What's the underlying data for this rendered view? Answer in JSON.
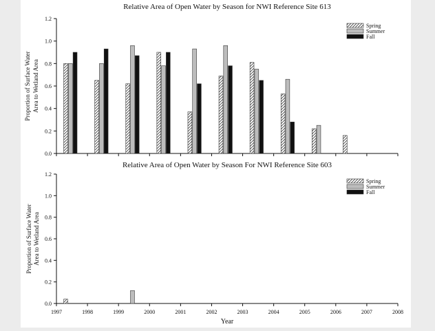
{
  "chart_data": [
    {
      "type": "bar",
      "title": "Relative Area of Open Water by Season for NWI Reference Site 613",
      "ylabel_lines": [
        "Proportion of Surface Water",
        "Area to Wetland Area"
      ],
      "xlabel": "",
      "ylim": [
        0,
        1.2
      ],
      "y_ticks": [
        "0.0",
        "0.2",
        "0.4",
        "0.6",
        "0.8",
        "1.0",
        "1.2"
      ],
      "x_range": [
        1997,
        2008
      ],
      "x_ticks": [],
      "grid": false,
      "legend_position": "top-right",
      "bar_width_years": 0.13,
      "series": [
        {
          "name": "Spring",
          "style": "hatch",
          "x": [
            1997.3,
            1998.3,
            1999.3,
            2000.3,
            2001.3,
            2002.3,
            2003.3,
            2004.3,
            2005.3,
            2006.3
          ],
          "values": [
            0.8,
            0.65,
            0.62,
            0.9,
            0.37,
            0.69,
            0.81,
            0.53,
            0.22,
            0.16
          ]
        },
        {
          "name": "Summer",
          "style": "gray",
          "x": [
            1997.45,
            1998.45,
            1999.45,
            2000.45,
            2001.45,
            2002.45,
            2003.45,
            2004.45,
            2005.45
          ],
          "values": [
            0.8,
            0.8,
            0.96,
            0.78,
            0.93,
            0.96,
            0.75,
            0.66,
            0.25
          ]
        },
        {
          "name": "Fall",
          "style": "black",
          "x": [
            1997.6,
            1998.6,
            1999.6,
            2000.6,
            2001.6,
            2002.6,
            2003.6,
            2004.6
          ],
          "values": [
            0.9,
            0.93,
            0.87,
            0.9,
            0.62,
            0.78,
            0.65,
            0.28
          ]
        }
      ]
    },
    {
      "type": "bar",
      "title": "Relative Area of Open Water by Season For NWI Reference Site 603",
      "ylabel_lines": [
        "Proportion of Surface Water",
        "Area to Wetland Area"
      ],
      "xlabel": "Year",
      "ylim": [
        0,
        1.2
      ],
      "y_ticks": [
        "0.0",
        "0.2",
        "0.4",
        "0.6",
        "0.8",
        "1.0",
        "1.2"
      ],
      "x_range": [
        1997,
        2008
      ],
      "x_ticks": [
        "1997",
        "1998",
        "1999",
        "2000",
        "2001",
        "2002",
        "2003",
        "2004",
        "2005",
        "2006",
        "2007",
        "2008"
      ],
      "grid": false,
      "legend_position": "top-right",
      "bar_width_years": 0.13,
      "series": [
        {
          "name": "Spring",
          "style": "hatch",
          "x": [
            1997.3
          ],
          "values": [
            0.04
          ]
        },
        {
          "name": "Summer",
          "style": "gray",
          "x": [
            1999.45
          ],
          "values": [
            0.12
          ]
        },
        {
          "name": "Fall",
          "style": "black",
          "x": [],
          "values": []
        }
      ]
    }
  ]
}
